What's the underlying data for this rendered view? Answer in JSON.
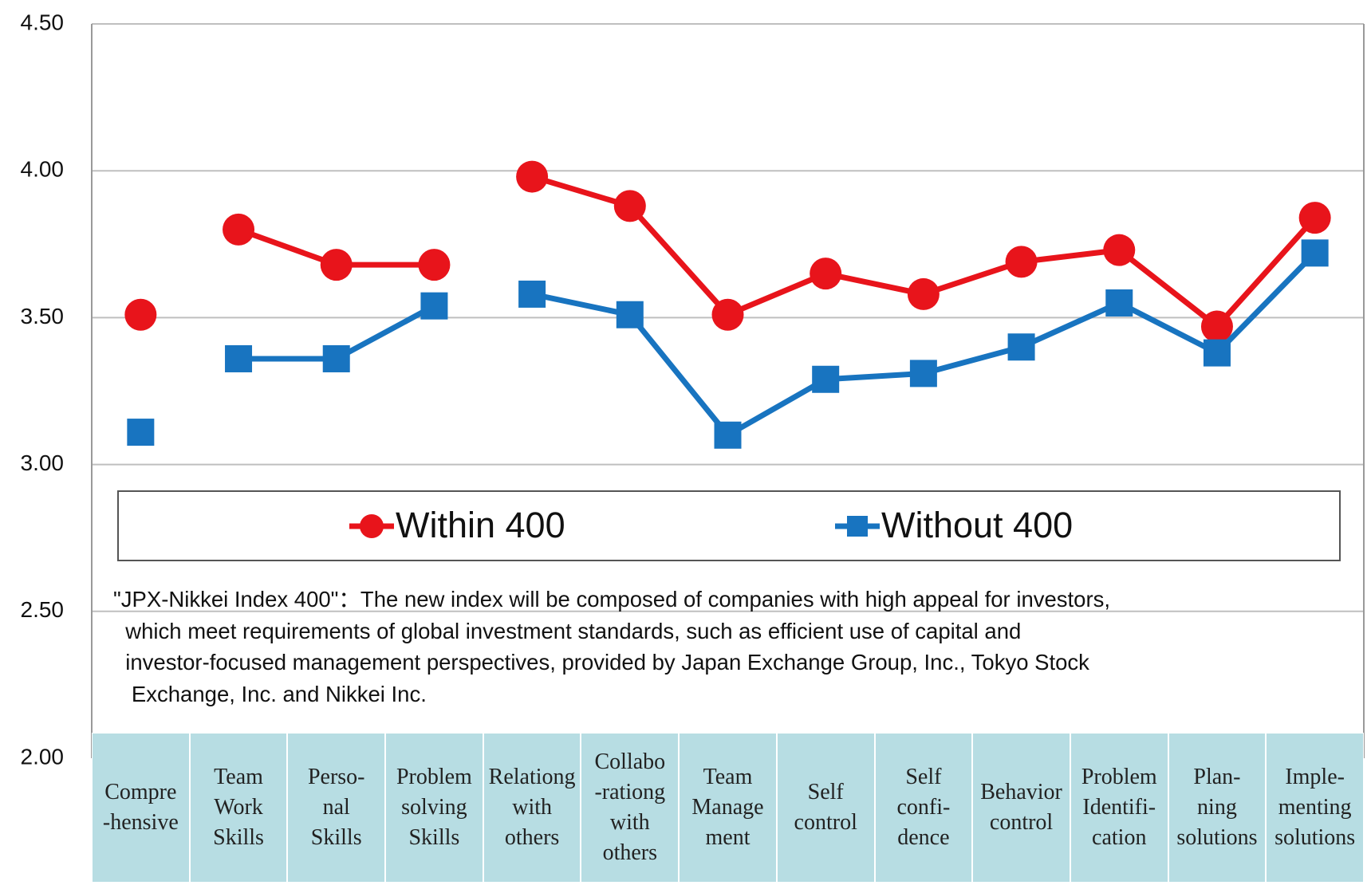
{
  "chart_data": {
    "type": "line",
    "categories": [
      "Compre\n-hensive",
      "Team\nWork\nSkills",
      "Perso-\nnal\nSkills",
      "Problem\nsolving\nSkills",
      "Relationg\nwith\nothers",
      "Collabo\n-rationg\nwith\nothers",
      "Team\nManage\nment",
      "Self\ncontrol",
      "Self\nconfi-\ndence",
      "Behavior\ncontrol",
      "Problem\nIdentifi-\ncation",
      "Plan-\nning\nsolutions",
      "Imple-\nmenting\nsolutions"
    ],
    "series": [
      {
        "name": "Within 400",
        "color": "#e8141b",
        "marker": "circle",
        "values": [
          3.51,
          3.8,
          3.68,
          3.68,
          3.98,
          3.88,
          3.51,
          3.65,
          3.58,
          3.69,
          3.73,
          3.47,
          3.84
        ]
      },
      {
        "name": "Without 400",
        "color": "#1874c0",
        "marker": "square",
        "values": [
          3.11,
          3.36,
          3.36,
          3.54,
          3.58,
          3.51,
          3.1,
          3.29,
          3.31,
          3.4,
          3.55,
          3.38,
          3.72
        ]
      }
    ],
    "line_pieces": [
      [
        0,
        0
      ],
      [
        1,
        3
      ],
      [
        4,
        12
      ]
    ],
    "ylim": [
      2,
      4.5
    ],
    "yticks": [
      {
        "value": 2,
        "label": "2.00"
      },
      {
        "value": 2.5,
        "label": "2.50"
      },
      {
        "value": 3,
        "label": "3.00"
      },
      {
        "value": 3.5,
        "label": "3.50"
      },
      {
        "value": 4,
        "label": "4.00"
      },
      {
        "value": 4.5,
        "label": "4.50"
      }
    ],
    "grid": true,
    "note": [
      "\"JPX-Nikkei Index 400\"：The new index will be composed of companies with high appeal for investors,",
      "  which meet requirements of global investment standards, such as efficient use of capital and",
      "  investor-focused management perspectives, provided by Japan Exchange Group, Inc., Tokyo Stock",
      "   Exchange, Inc. and Nikkei Inc."
    ]
  }
}
